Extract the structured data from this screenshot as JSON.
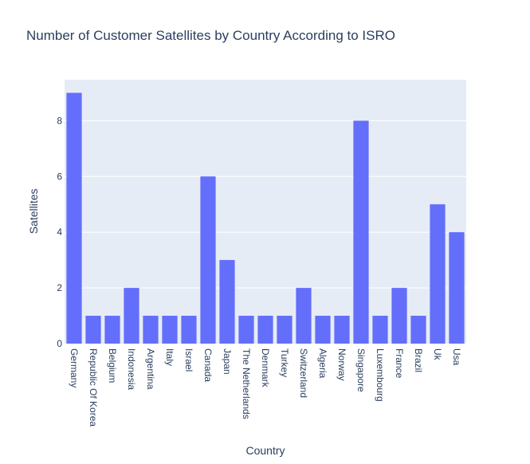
{
  "chart_data": {
    "type": "bar",
    "title": "Number of Customer Satellites by Country According to ISRO",
    "xlabel": "Country",
    "ylabel": "Satellites",
    "categories": [
      "Germany",
      "Republic Of Korea",
      "Belgium",
      "Indonesia",
      "Argentina",
      "Italy",
      "Israel",
      "Canada",
      "Japan",
      "The Netherlands",
      "Denmark",
      "Turkey",
      "Switzerland",
      "Algeria",
      "Norway",
      "Singapore",
      "Luxembourg",
      "France",
      "Brazil",
      "Uk",
      "Usa"
    ],
    "values": [
      9,
      1,
      1,
      2,
      1,
      1,
      1,
      6,
      3,
      1,
      1,
      1,
      2,
      1,
      1,
      8,
      1,
      2,
      1,
      5,
      4
    ],
    "ylim": [
      0,
      9.47
    ],
    "yticks": [
      0,
      2,
      4,
      6,
      8
    ],
    "grid": true,
    "legend": "none",
    "colors": {
      "bar": "#636efa",
      "plot_bg": "#e5ecf6",
      "text": "#2a3f5f",
      "grid": "#ffffff"
    }
  }
}
